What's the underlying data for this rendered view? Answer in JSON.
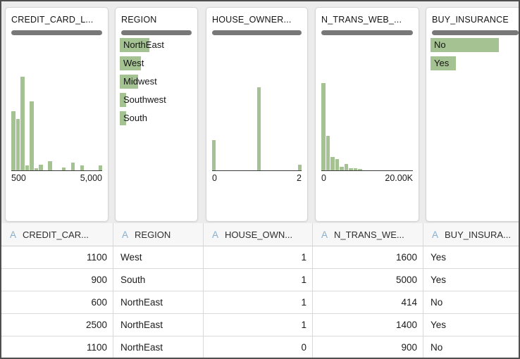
{
  "colors": {
    "bar_green": "#a5c293",
    "quality_bar_gray": "#787878",
    "column_type_blue": "#8aaecf",
    "card_background": "#ffffff",
    "page_background": "#ececec"
  },
  "profile_cards": [
    {
      "title": "CREDIT_CARD_L...",
      "type": "histogram",
      "axis": {
        "left": "500",
        "right": "5,000"
      },
      "bins": [
        63,
        55,
        100,
        5,
        74,
        2,
        6,
        0,
        10,
        0,
        0,
        3,
        0,
        8,
        0,
        5,
        0,
        0,
        0,
        5
      ]
    },
    {
      "title": "REGION",
      "type": "categories",
      "categories": [
        {
          "label": "NorthEast",
          "pct": 40
        },
        {
          "label": "West",
          "pct": 29
        },
        {
          "label": "Midwest",
          "pct": 25
        },
        {
          "label": "Southwest",
          "pct": 9
        },
        {
          "label": "South",
          "pct": 9
        }
      ]
    },
    {
      "title": "HOUSE_OWNER...",
      "type": "histogram",
      "axis": {
        "left": "0",
        "right": "2"
      },
      "bins": [
        32,
        0,
        0,
        0,
        0,
        0,
        0,
        0,
        0,
        0,
        89,
        0,
        0,
        0,
        0,
        0,
        0,
        0,
        0,
        6
      ]
    },
    {
      "title": "N_TRANS_WEB_...",
      "type": "histogram",
      "axis": {
        "left": "0",
        "right": "20.00K"
      },
      "bins": [
        93,
        37,
        14,
        12,
        4,
        7,
        2,
        2,
        1.5,
        0,
        0,
        0,
        0,
        0,
        0,
        0,
        0,
        0,
        0,
        0
      ]
    },
    {
      "title": "BUY_INSURANCE",
      "type": "categories",
      "categories": [
        {
          "label": "No",
          "pct": 76
        },
        {
          "label": "Yes",
          "pct": 28
        }
      ]
    }
  ],
  "table": {
    "columns": [
      {
        "type_icon": "A",
        "name": "CREDIT_CAR...",
        "align": "right"
      },
      {
        "type_icon": "A",
        "name": "REGION",
        "align": "left"
      },
      {
        "type_icon": "A",
        "name": "HOUSE_OWN...",
        "align": "right"
      },
      {
        "type_icon": "A",
        "name": "N_TRANS_WE...",
        "align": "right"
      },
      {
        "type_icon": "A",
        "name": "BUY_INSURA...",
        "align": "left"
      }
    ],
    "rows": [
      [
        "1100",
        "West",
        "1",
        "1600",
        "Yes"
      ],
      [
        "900",
        "South",
        "1",
        "5000",
        "Yes"
      ],
      [
        "600",
        "NorthEast",
        "1",
        "414",
        "No"
      ],
      [
        "2500",
        "NorthEast",
        "1",
        "1400",
        "Yes"
      ],
      [
        "1100",
        "NorthEast",
        "0",
        "900",
        "No"
      ]
    ]
  }
}
